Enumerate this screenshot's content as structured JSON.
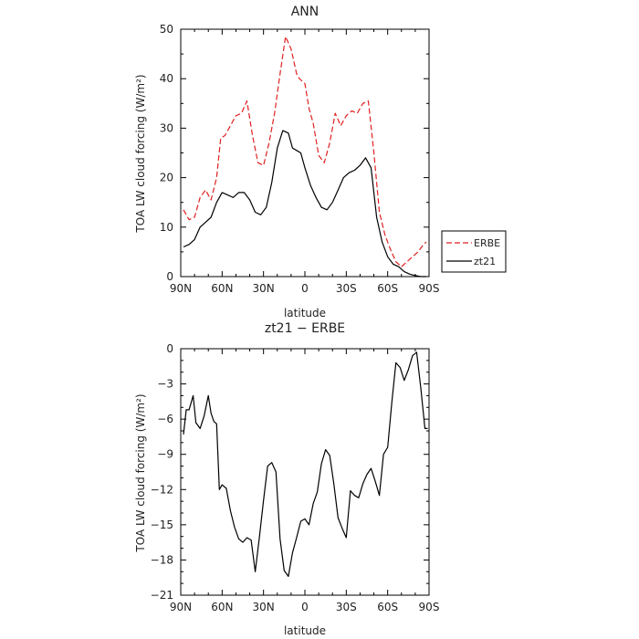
{
  "chart_data": [
    {
      "type": "line",
      "title": "ANN",
      "xlabel": "latitude",
      "ylabel": "TOA LW cloud forcing (W/m²)",
      "x_ticks": [
        "90N",
        "60N",
        "30N",
        "0",
        "30S",
        "60S",
        "90S"
      ],
      "xlim": [
        90,
        -90
      ],
      "ylim": [
        0,
        50
      ],
      "y_ticks": [
        0,
        10,
        20,
        30,
        40,
        50
      ],
      "legend": {
        "placement": "right",
        "entries": [
          {
            "label": "ERBE",
            "color": "#e02020",
            "dash": "dashed"
          },
          {
            "label": "zt21",
            "color": "#000000",
            "dash": "solid"
          }
        ]
      },
      "series": [
        {
          "name": "ERBE",
          "color": "#e02020",
          "x": [
            88,
            84,
            80,
            76,
            72,
            68,
            64,
            61,
            58,
            54,
            50,
            46,
            42,
            38,
            34,
            30,
            26,
            22,
            18,
            14,
            10,
            6,
            4,
            2,
            0,
            -3,
            -6,
            -10,
            -14,
            -18,
            -22,
            -26,
            -30,
            -34,
            -38,
            -42,
            -46,
            -50,
            -54,
            -58,
            -62,
            -66,
            -70,
            -74,
            -78,
            -82,
            -86,
            -88
          ],
          "y": [
            13.5,
            11.5,
            12,
            16,
            17.5,
            15.5,
            20,
            28,
            28.5,
            30.5,
            32.5,
            33,
            35.5,
            28.5,
            23,
            22.5,
            27,
            33,
            41,
            48.5,
            46,
            41,
            40,
            39.5,
            39,
            34,
            31,
            24.5,
            23,
            27,
            33,
            30.5,
            32.5,
            33.5,
            33,
            35,
            35.5,
            25,
            13,
            8.5,
            5.5,
            3,
            2,
            3,
            4,
            5,
            6.5,
            7
          ]
        },
        {
          "name": "zt21",
          "color": "#000000",
          "x": [
            88,
            84,
            80,
            76,
            72,
            68,
            64,
            60,
            56,
            52,
            48,
            44,
            40,
            36,
            32,
            28,
            24,
            20,
            16,
            12,
            9,
            6,
            3,
            0,
            -4,
            -8,
            -12,
            -16,
            -20,
            -24,
            -28,
            -32,
            -36,
            -40,
            -44,
            -48,
            -52,
            -56,
            -60,
            -64,
            -68,
            -72,
            -76,
            -80,
            -84,
            -86,
            -88
          ],
          "y": [
            6,
            6.5,
            7.5,
            10,
            11,
            12,
            15,
            17,
            16.5,
            16,
            17,
            17,
            15.5,
            13,
            12.5,
            14,
            19,
            26,
            29.5,
            29,
            26,
            25.5,
            25,
            22,
            18.5,
            16,
            14,
            13.5,
            15,
            17.5,
            20,
            21,
            21.5,
            22.5,
            24,
            22,
            12,
            7,
            4,
            2.5,
            2,
            1,
            0.5,
            0.2,
            0,
            0,
            0
          ]
        }
      ]
    },
    {
      "type": "line",
      "title": "zt21 − ERBE",
      "xlabel": "latitude",
      "ylabel": "TOA LW cloud forcing (W/m²)",
      "x_ticks": [
        "90N",
        "60N",
        "30N",
        "0",
        "30S",
        "60S",
        "90S"
      ],
      "xlim": [
        90,
        -90
      ],
      "ylim": [
        -21,
        0
      ],
      "y_ticks": [
        -21,
        -18,
        -15,
        -12,
        -9,
        -6,
        -3,
        0
      ],
      "series": [
        {
          "name": "",
          "color": "#000000",
          "x": [
            88,
            86,
            84,
            81,
            79,
            76,
            73,
            70,
            68,
            66,
            64,
            62,
            60,
            57,
            54,
            51,
            48,
            45,
            42,
            39,
            36,
            33,
            30,
            27,
            24,
            21,
            18,
            15,
            12,
            9,
            6,
            3,
            0,
            -3,
            -6,
            -9,
            -12,
            -15,
            -18,
            -21,
            -24,
            -27,
            -30,
            -33,
            -36,
            -39,
            -42,
            -45,
            -48,
            -51,
            -54,
            -57,
            -60,
            -63,
            -66,
            -69,
            -72,
            -75,
            -78,
            -81,
            -84,
            -87,
            -89
          ],
          "y": [
            -7.3,
            -5.2,
            -5.2,
            -4,
            -6.3,
            -6.8,
            -5.7,
            -4,
            -5.5,
            -6.2,
            -6.4,
            -12,
            -11.6,
            -11.9,
            -13.8,
            -15.2,
            -16.2,
            -16.5,
            -16.1,
            -16.3,
            -19,
            -16.1,
            -12.9,
            -10,
            -9.7,
            -10.5,
            -16.2,
            -18.9,
            -19.4,
            -17.4,
            -16.1,
            -14.7,
            -14.5,
            -15,
            -13.2,
            -12.2,
            -9.8,
            -8.6,
            -9.1,
            -11.5,
            -14.4,
            -15.3,
            -16.1,
            -12.1,
            -12.5,
            -12.7,
            -11.5,
            -10.7,
            -10.2,
            -11.3,
            -12.5,
            -9,
            -8.4,
            -4.6,
            -1.2,
            -1.6,
            -2.7,
            -1.8,
            -0.6,
            -0.3,
            -3.3,
            -6.8,
            -6.8
          ]
        }
      ]
    }
  ]
}
